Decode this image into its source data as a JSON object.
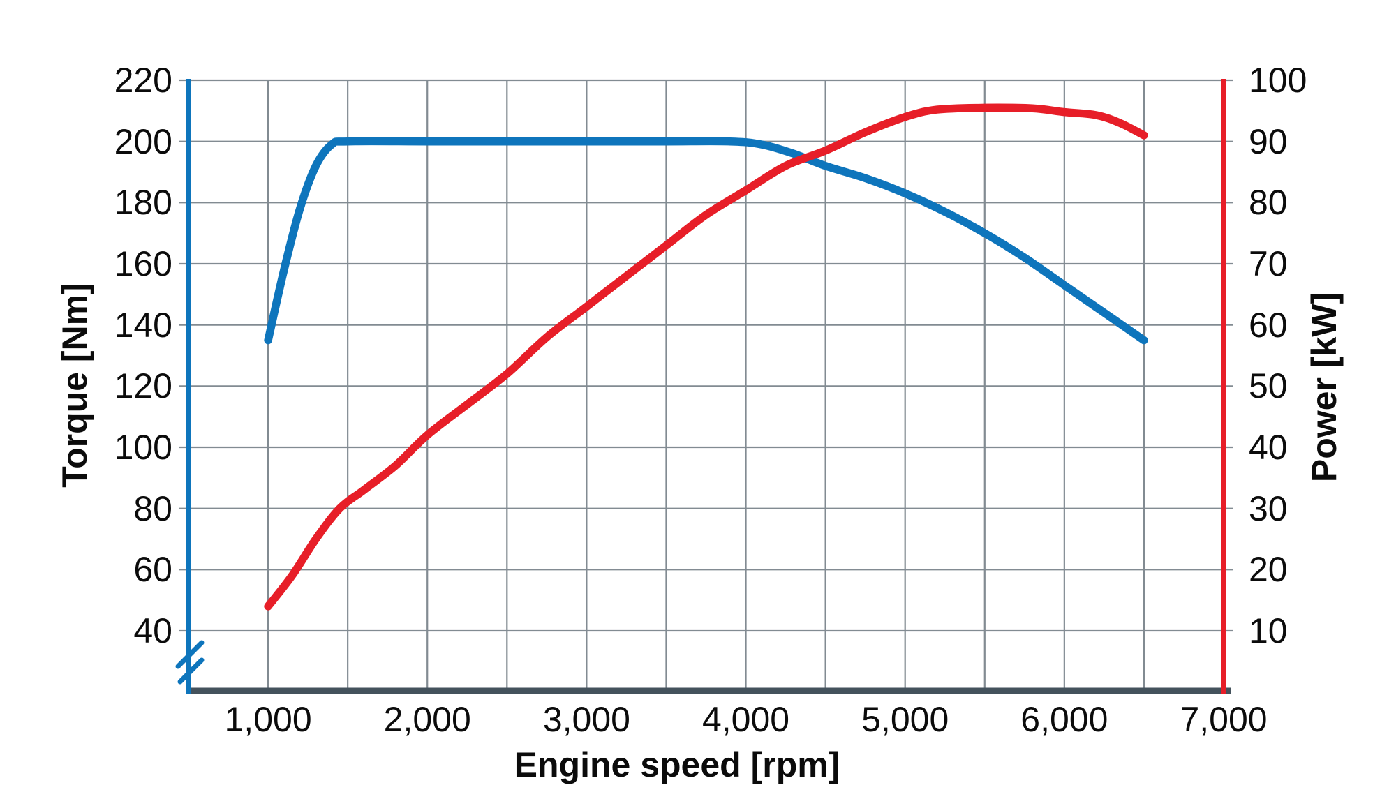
{
  "chart_data": {
    "type": "line",
    "title": "",
    "xlabel": "Engine speed [rpm]",
    "ylabel_left": "Torque [Nm]",
    "ylabel_right": "Power [kW]",
    "grid": true,
    "x_axis_range_plotted": [
      500,
      7000
    ],
    "x_ticks": [
      {
        "value": 1000,
        "label": "1,000"
      },
      {
        "value": 2000,
        "label": "2,000"
      },
      {
        "value": 3000,
        "label": "3,000"
      },
      {
        "value": 4000,
        "label": "4,000"
      },
      {
        "value": 5000,
        "label": "5,000"
      },
      {
        "value": 6000,
        "label": "6,000"
      },
      {
        "value": 7000,
        "label": "7,000"
      }
    ],
    "x_grid": {
      "from": 1000,
      "to": 6500,
      "step": 500
    },
    "y_left": {
      "unit": "Nm",
      "ticks": [
        220,
        200,
        180,
        160,
        140,
        120,
        100,
        80,
        60,
        40
      ],
      "range": [
        40,
        220
      ],
      "axis_break_below_min": true
    },
    "y_right": {
      "unit": "kW",
      "ticks": [
        100,
        90,
        80,
        70,
        60,
        50,
        40,
        30,
        20,
        10
      ],
      "range": [
        10,
        100
      ]
    },
    "series": [
      {
        "name": "Torque",
        "axis": "left",
        "color": "#0e75bc",
        "points": [
          [
            1000,
            135
          ],
          [
            1100,
            158
          ],
          [
            1200,
            178
          ],
          [
            1300,
            192
          ],
          [
            1400,
            199
          ],
          [
            1500,
            200
          ],
          [
            2000,
            200
          ],
          [
            2500,
            200
          ],
          [
            3000,
            200
          ],
          [
            3500,
            200
          ],
          [
            3900,
            200
          ],
          [
            4100,
            199
          ],
          [
            4300,
            196
          ],
          [
            4500,
            192
          ],
          [
            4750,
            188
          ],
          [
            5000,
            183
          ],
          [
            5250,
            177
          ],
          [
            5500,
            170
          ],
          [
            5750,
            162
          ],
          [
            6000,
            153
          ],
          [
            6250,
            144
          ],
          [
            6500,
            135
          ]
        ]
      },
      {
        "name": "Power",
        "axis": "right",
        "color": "#e71e28",
        "points": [
          [
            1000,
            14
          ],
          [
            1150,
            19
          ],
          [
            1300,
            25
          ],
          [
            1450,
            30
          ],
          [
            1600,
            33
          ],
          [
            1800,
            37
          ],
          [
            2000,
            42
          ],
          [
            2250,
            47
          ],
          [
            2500,
            52
          ],
          [
            2750,
            58
          ],
          [
            3000,
            63
          ],
          [
            3250,
            68
          ],
          [
            3500,
            73
          ],
          [
            3750,
            78
          ],
          [
            4000,
            82
          ],
          [
            4250,
            86
          ],
          [
            4500,
            88.5
          ],
          [
            4750,
            91.5
          ],
          [
            5000,
            94
          ],
          [
            5200,
            95.2
          ],
          [
            5500,
            95.5
          ],
          [
            5800,
            95.4
          ],
          [
            6000,
            94.8
          ],
          [
            6200,
            94.3
          ],
          [
            6350,
            93
          ],
          [
            6500,
            91
          ]
        ]
      }
    ]
  },
  "colors": {
    "torque_curve_and_left_axis": "#0e75bc",
    "power_curve_and_right_axis": "#e71e28",
    "gridline": "#828b92",
    "bottom_axis": "#44525c",
    "text": "#0b0b0b",
    "background": "#ffffff"
  }
}
